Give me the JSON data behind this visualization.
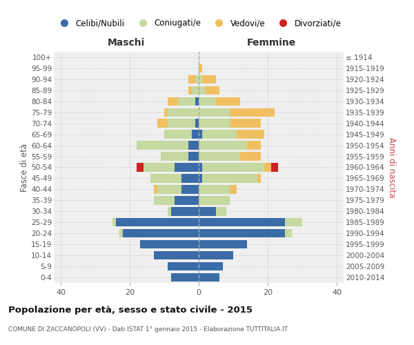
{
  "age_groups": [
    "100+",
    "95-99",
    "90-94",
    "85-89",
    "80-84",
    "75-79",
    "70-74",
    "65-69",
    "60-64",
    "55-59",
    "50-54",
    "45-49",
    "40-44",
    "35-39",
    "30-34",
    "25-29",
    "20-24",
    "15-19",
    "10-14",
    "5-9",
    "0-4"
  ],
  "birth_years": [
    "≤ 1914",
    "1915-1919",
    "1920-1924",
    "1925-1929",
    "1930-1934",
    "1935-1939",
    "1940-1944",
    "1945-1949",
    "1950-1954",
    "1955-1959",
    "1960-1964",
    "1965-1969",
    "1970-1974",
    "1975-1979",
    "1980-1984",
    "1985-1989",
    "1990-1994",
    "1995-1999",
    "2000-2004",
    "2005-2009",
    "2010-2014"
  ],
  "colors": {
    "celibi": "#3b6ca8",
    "coniugati": "#c5d9a0",
    "vedovi": "#f0c060",
    "divorziati": "#cc2222"
  },
  "maschi": {
    "celibi": [
      0,
      0,
      0,
      0,
      1,
      0,
      1,
      2,
      3,
      3,
      7,
      5,
      5,
      7,
      8,
      24,
      22,
      17,
      13,
      9,
      8
    ],
    "coniugati": [
      0,
      0,
      1,
      2,
      5,
      9,
      8,
      8,
      15,
      8,
      9,
      9,
      7,
      6,
      1,
      1,
      1,
      0,
      0,
      0,
      0
    ],
    "vedovi": [
      0,
      0,
      2,
      1,
      3,
      1,
      3,
      0,
      0,
      0,
      0,
      0,
      1,
      0,
      0,
      0,
      0,
      0,
      0,
      0,
      0
    ],
    "divorziati": [
      0,
      0,
      0,
      0,
      0,
      0,
      0,
      0,
      0,
      0,
      2,
      0,
      0,
      0,
      0,
      0,
      0,
      0,
      0,
      0,
      0
    ]
  },
  "femmine": {
    "celibi": [
      0,
      0,
      0,
      0,
      0,
      0,
      0,
      1,
      0,
      0,
      1,
      1,
      0,
      0,
      5,
      25,
      25,
      14,
      10,
      7,
      6
    ],
    "coniugati": [
      0,
      0,
      1,
      2,
      5,
      9,
      9,
      10,
      14,
      12,
      18,
      16,
      9,
      9,
      3,
      5,
      2,
      0,
      0,
      0,
      0
    ],
    "vedovi": [
      0,
      1,
      4,
      4,
      7,
      13,
      9,
      8,
      4,
      6,
      2,
      1,
      2,
      0,
      0,
      0,
      0,
      0,
      0,
      0,
      0
    ],
    "divorziati": [
      0,
      0,
      0,
      0,
      0,
      0,
      0,
      0,
      0,
      0,
      2,
      0,
      0,
      0,
      0,
      0,
      0,
      0,
      0,
      0,
      0
    ]
  },
  "xlim": 42,
  "title1": "Popolazione per età, sesso e stato civile - 2015",
  "title2": "COMUNE DI ZACCANOPOLI (VV) - Dati ISTAT 1° gennaio 2015 - Elaborazione TUTTITALIA.IT",
  "ylabel_left": "Fasce di età",
  "ylabel_right": "Anni di nascita",
  "xlabel_maschi": "Maschi",
  "xlabel_femmine": "Femmine",
  "bg_color": "#efefef",
  "grid_color": "#cccccc",
  "legend_labels": [
    "Celibi/Nubili",
    "Coniugati/e",
    "Vedovi/e",
    "Divorziati/e"
  ]
}
